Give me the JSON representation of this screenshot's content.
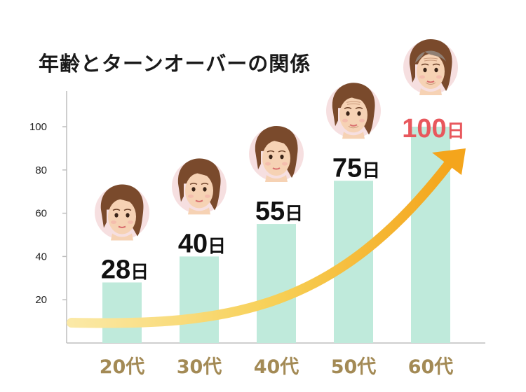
{
  "chart_data": {
    "type": "bar",
    "title": "年齢とターンオーバーの関係",
    "xlabel": "",
    "ylabel": "",
    "categories": [
      "20代",
      "30代",
      "40代",
      "50代",
      "60代"
    ],
    "values": [
      28,
      40,
      55,
      75,
      100
    ],
    "value_labels": [
      "28",
      "40",
      "55",
      "75",
      "100"
    ],
    "value_unit": "日",
    "yticks": [
      20,
      40,
      60,
      80,
      100
    ],
    "ylim": [
      0,
      115
    ],
    "grid": false,
    "legend": "none",
    "colors": {
      "bar": "#bfeadb",
      "category_text": "#a38a55",
      "value_text": "#111111",
      "highlight_value_text": "#e8585d",
      "axis": "#bdbdbd",
      "arrow_start": "#fbe9a6",
      "arrow_end": "#f4a51c"
    },
    "highlight_index": 4,
    "annotations": [
      "age-face-illustration-per-bar",
      "rising-trend-arrow"
    ]
  }
}
